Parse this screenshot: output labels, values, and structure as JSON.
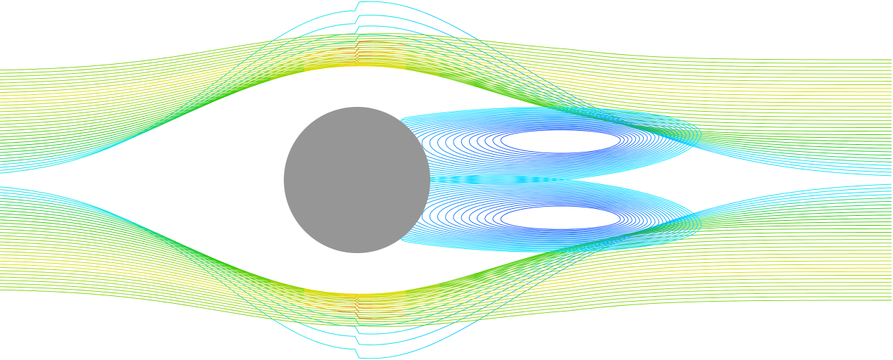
{
  "scene": {
    "subject": "streamlines-flow-past-cylinder",
    "colors": {
      "background": "#ffffff",
      "cylinder": "#969696",
      "slow": "#0a3cff",
      "cyan": "#00e5ff",
      "green": "#28c800",
      "yellow": "#f0e000",
      "red": "#ff1a00"
    }
  }
}
